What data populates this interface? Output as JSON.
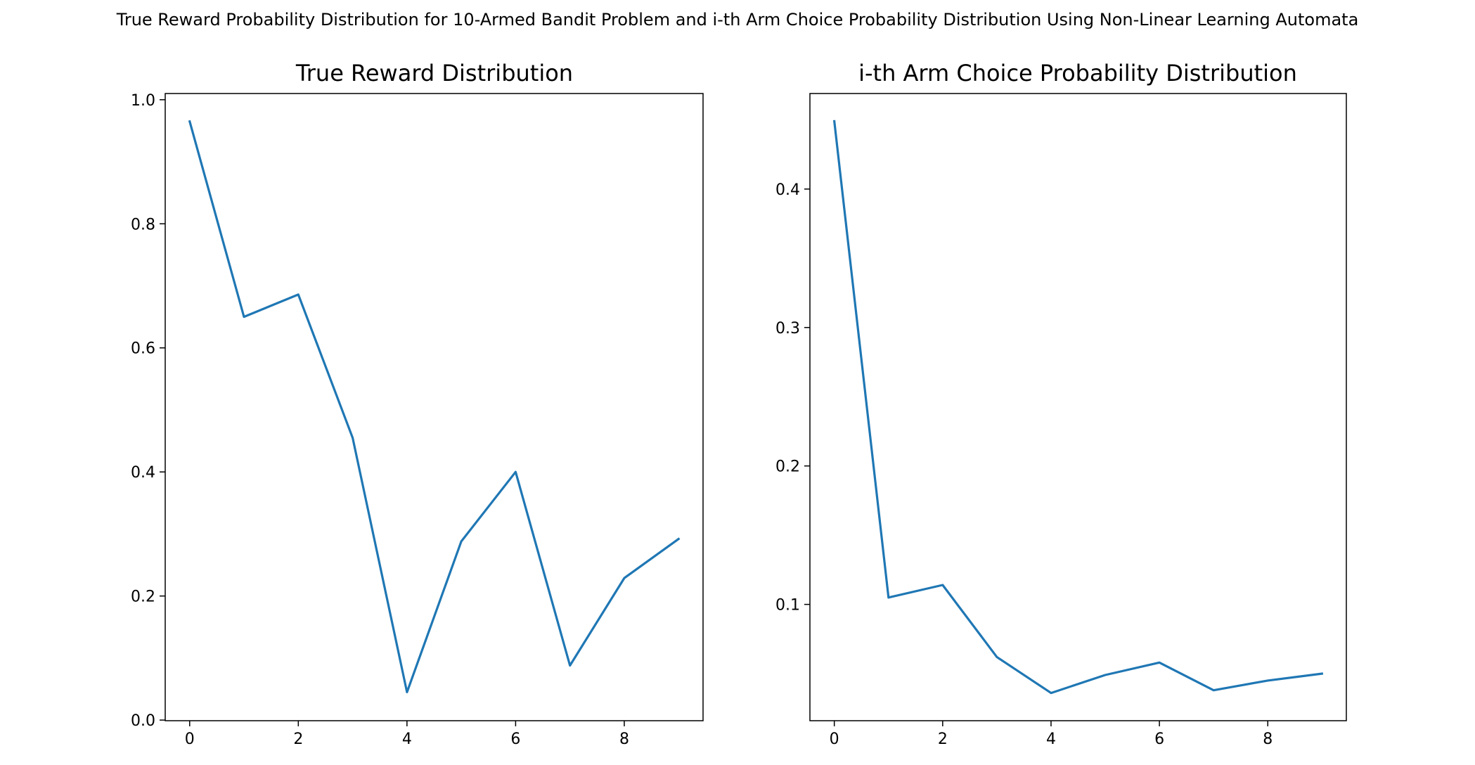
{
  "figure": {
    "title": "True Reward Probability Distribution for 10-Armed Bandit Problem and i-th Arm Choice Probability Distribution Using Non-Linear Learning Automata"
  },
  "chart_data": [
    {
      "type": "line",
      "title": "True Reward Distribution",
      "xlabel": "",
      "ylabel": "",
      "x": [
        0,
        1,
        2,
        3,
        4,
        5,
        6,
        7,
        8,
        9
      ],
      "values": [
        0.965,
        0.65,
        0.686,
        0.455,
        0.045,
        0.288,
        0.4,
        0.088,
        0.229,
        0.292
      ],
      "xlim": [
        -0.45,
        9.45
      ],
      "ylim": [
        -0.001,
        1.01
      ],
      "xticks": [
        0,
        2,
        4,
        6,
        8
      ],
      "yticks": [
        0.0,
        0.2,
        0.4,
        0.6,
        0.8,
        1.0
      ],
      "ytick_labels": [
        "0.0",
        "0.2",
        "0.4",
        "0.6",
        "0.8",
        "1.0"
      ],
      "color": "#1f77b4",
      "grid": false,
      "legend": "none"
    },
    {
      "type": "line",
      "title": "i-th Arm Choice Probability Distribution",
      "xlabel": "",
      "ylabel": "",
      "x": [
        0,
        1,
        2,
        3,
        4,
        5,
        6,
        7,
        8,
        9
      ],
      "values": [
        0.449,
        0.105,
        0.114,
        0.062,
        0.036,
        0.049,
        0.058,
        0.038,
        0.045,
        0.05
      ],
      "xlim": [
        -0.45,
        9.45
      ],
      "ylim": [
        0.016,
        0.469
      ],
      "xticks": [
        0,
        2,
        4,
        6,
        8
      ],
      "yticks": [
        0.1,
        0.2,
        0.3,
        0.4
      ],
      "ytick_labels": [
        "0.1",
        "0.2",
        "0.3",
        "0.4"
      ],
      "color": "#1f77b4",
      "grid": false,
      "legend": "none"
    }
  ]
}
